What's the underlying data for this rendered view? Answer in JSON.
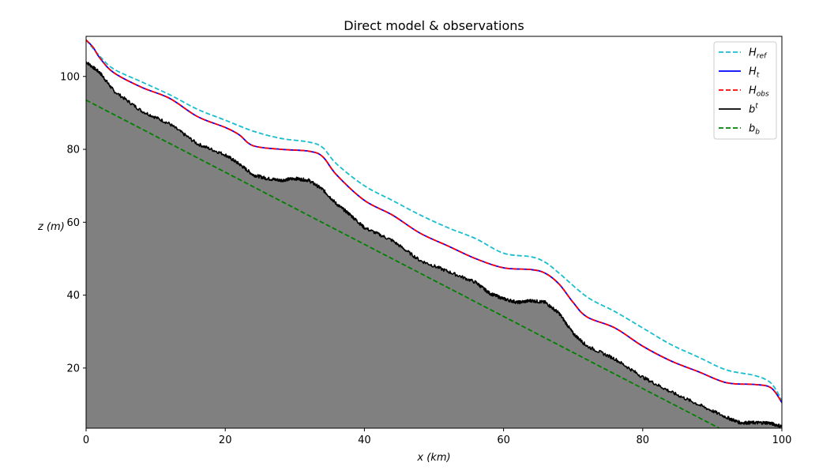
{
  "chart_data": {
    "type": "line",
    "title": "Direct model & observations",
    "xlabel": "x (km)",
    "ylabel": "z (m)",
    "xlim": [
      0,
      100
    ],
    "ylim": [
      3.5,
      111
    ],
    "x_ticks": [
      0,
      20,
      40,
      60,
      80,
      100
    ],
    "y_ticks": [
      20,
      40,
      60,
      80,
      100
    ],
    "grid": false,
    "legend_position": "top-right",
    "fill_below": {
      "series": "b^t",
      "color": "#808080"
    },
    "series": [
      {
        "name": "H_ref",
        "legend_base": "H",
        "legend_sub": "ref",
        "legend_sup": "",
        "color": "#17becf",
        "dash": "dashed",
        "x": [
          0,
          2,
          4,
          8,
          12,
          16,
          20,
          24,
          28,
          32,
          34,
          36,
          40,
          44,
          48,
          52,
          56,
          60,
          64,
          66,
          68,
          72,
          76,
          80,
          84,
          88,
          92,
          96,
          98,
          99,
          100
        ],
        "y": [
          110,
          105.5,
          102,
          98.5,
          95,
          91,
          88,
          85,
          83,
          82,
          80.5,
          76,
          70,
          66,
          62,
          58.5,
          55.5,
          51.5,
          50.5,
          49,
          46,
          39.5,
          35.5,
          31,
          26.5,
          23,
          19.5,
          18,
          16.5,
          14.5,
          11
        ]
      },
      {
        "name": "H_t",
        "legend_base": "H",
        "legend_sub": "t",
        "legend_sup": "",
        "color": "#0000ff",
        "dash": "solid",
        "x": [
          0,
          1,
          2,
          4,
          8,
          12,
          16,
          20,
          22,
          24,
          28,
          32,
          34,
          36,
          40,
          44,
          48,
          52,
          56,
          60,
          64,
          66,
          68,
          70,
          72,
          76,
          80,
          84,
          88,
          92,
          96,
          98,
          99,
          100
        ],
        "y": [
          110,
          108,
          105,
          101,
          97,
          94,
          89,
          86,
          84,
          81,
          80,
          79.5,
          78,
          73,
          66,
          62,
          57,
          53.5,
          50,
          47.5,
          47,
          46,
          43,
          38,
          34,
          31,
          26,
          22,
          19,
          16,
          15.5,
          15,
          13.5,
          10.5
        ]
      },
      {
        "name": "H_obs",
        "legend_base": "H",
        "legend_sub": "obs",
        "legend_sup": "",
        "color": "#ff0000",
        "dash": "dashed",
        "x": [
          0,
          1,
          2,
          4,
          8,
          12,
          16,
          20,
          22,
          24,
          28,
          32,
          34,
          36,
          40,
          44,
          48,
          52,
          56,
          60,
          64,
          66,
          68,
          70,
          72,
          76,
          80,
          84,
          88,
          92,
          96,
          98,
          99,
          100
        ],
        "y": [
          110,
          108,
          105,
          101,
          97,
          94,
          89,
          86,
          84,
          81,
          80,
          79.5,
          78,
          73,
          66,
          62,
          57,
          53.5,
          50,
          47.5,
          47,
          46,
          43,
          38,
          34,
          31,
          26,
          22,
          19,
          16,
          15.5,
          15,
          13.5,
          10.5
        ]
      },
      {
        "name": "b^t",
        "legend_base": "b",
        "legend_sub": "",
        "legend_sup": "t",
        "color": "#000000",
        "dash": "solid",
        "x": [
          0,
          2,
          4,
          8,
          12,
          16,
          20,
          22,
          24,
          26,
          28,
          30,
          32,
          34,
          36,
          38,
          40,
          44,
          48,
          52,
          56,
          58,
          60,
          62,
          64,
          66,
          68,
          70,
          72,
          76,
          80,
          84,
          88,
          92,
          94,
          96,
          98,
          100
        ],
        "y": [
          104,
          101,
          96,
          90.5,
          87,
          81.5,
          78.5,
          76,
          73,
          72,
          71.5,
          72,
          71.5,
          69,
          65,
          62,
          58.5,
          55,
          49.5,
          46.5,
          43.5,
          40.5,
          39,
          38,
          38.5,
          38,
          35,
          29.5,
          26,
          22.5,
          17.5,
          13.5,
          10,
          6.5,
          5,
          5,
          5,
          4
        ]
      },
      {
        "name": "b_b",
        "legend_base": "b",
        "legend_sub": "b",
        "legend_sup": "",
        "color": "#008000",
        "dash": "dashed",
        "x": [
          0,
          91
        ],
        "y": [
          93.5,
          3.5
        ]
      }
    ]
  }
}
